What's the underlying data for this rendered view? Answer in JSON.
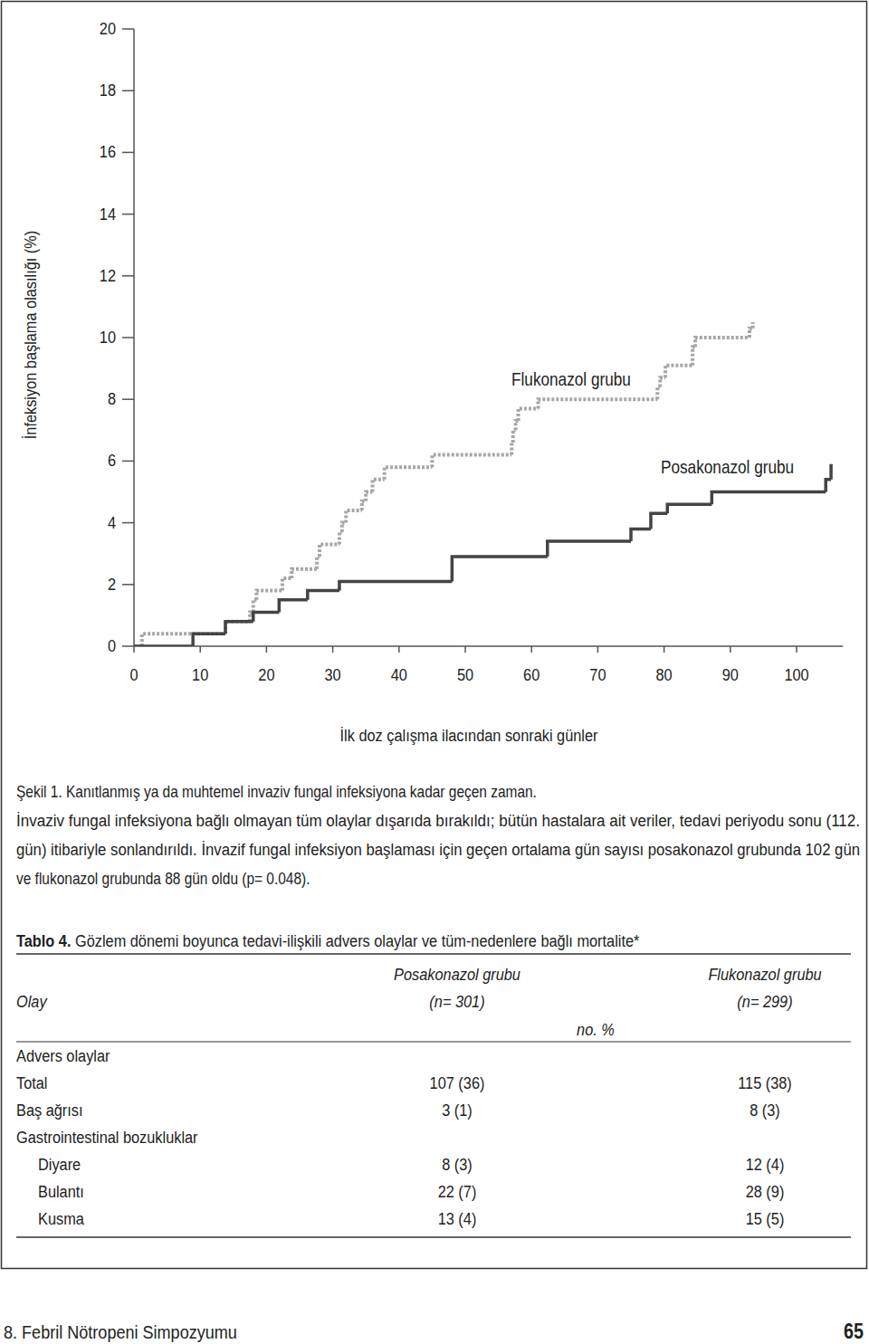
{
  "chart_data": {
    "type": "step",
    "x_label": "İlk doz çalışma ilacından sonraki günler",
    "y_label": "İnfeksiyon başlama olasılığı (%)",
    "xlim": [
      0,
      107
    ],
    "xticks": [
      0,
      10,
      20,
      30,
      40,
      50,
      60,
      70,
      80,
      90,
      100
    ],
    "ylim": [
      0,
      20
    ],
    "yticks": [
      0,
      2,
      4,
      6,
      8,
      10,
      12,
      14,
      16,
      18,
      20
    ],
    "grid": false,
    "series": [
      {
        "name": "Flukonazol grubu",
        "color": "#a6a6a6",
        "line_style": "dashed",
        "x": [
          0,
          1.2,
          13.8,
          17.5,
          18,
          18.5,
          22.4,
          23.8,
          27.6,
          28,
          31,
          31.4,
          32,
          34.4,
          35,
          36,
          37.8,
          45,
          57,
          57.2,
          57.6,
          58,
          61,
          79,
          79.4,
          80.2,
          84.3,
          84.7,
          92.9,
          93.4
        ],
        "values": [
          0,
          0.4,
          0.8,
          1.1,
          1.5,
          1.8,
          2.2,
          2.5,
          2.9,
          3.3,
          3.7,
          4.0,
          4.4,
          4.7,
          5.0,
          5.4,
          5.8,
          6.2,
          6.6,
          7.0,
          7.3,
          7.7,
          8.0,
          8.4,
          8.7,
          9.1,
          9.7,
          10.0,
          10.3,
          10.5
        ]
      },
      {
        "name": "Posakonazol grubu",
        "color": "#444444",
        "line_style": "solid",
        "x": [
          0,
          8.9,
          13.8,
          18,
          21.9,
          26.2,
          31,
          48,
          62.4,
          75,
          78,
          80.5,
          87.2,
          104.4,
          105.2
        ],
        "values": [
          0,
          0.4,
          0.8,
          1.1,
          1.5,
          1.8,
          2.1,
          2.9,
          3.4,
          3.8,
          4.3,
          4.6,
          5.0,
          5.4,
          5.9
        ]
      }
    ]
  },
  "figure_caption": [
    "Şekil 1. Kanıtlanmış ya da muhtemel invaziv fungal infeksiyona kadar geçen zaman.",
    "İnvaziv fungal infeksiyona bağlı olmayan tüm olaylar dışarıda bırakıldı; bütün hastalara ait veriler, tedavi periyodu sonu (112.",
    "gün) itibariyle sonlandırıldı. İnvazif fungal infeksiyon başlaması için geçen ortalama gün sayısı posakonazol grubunda 102 gün",
    "ve flukonazol grubunda 88 gün oldu (p= 0.048)."
  ],
  "table": {
    "label": "Tablo 4.",
    "title": "Gözlem dönemi boyunca tedavi-ilişkili advers olaylar ve tüm-nedenlere bağlı mortalite*",
    "row_header": "Olay",
    "columns": [
      {
        "name": "Posakonazol grubu",
        "n": "(n= 301)"
      },
      {
        "name": "Flukonazol grubu",
        "n": "(n= 299)"
      }
    ],
    "unit": "no. %",
    "rows": [
      {
        "label": "Advers olaylar"
      },
      {
        "label": "Total",
        "cells": [
          "107 (36)",
          "115 (38)"
        ]
      },
      {
        "label": "Baş ağrısı",
        "cells": [
          "3 (1)",
          "8 (3)"
        ]
      },
      {
        "label": "Gastrointestinal bozukluklar",
        "subrows": [
          {
            "label": "Diyare",
            "cells": [
              "8 (3)",
              "12 (4)"
            ]
          },
          {
            "label": "Bulantı",
            "cells": [
              "22 (7)",
              "28 (9)"
            ]
          },
          {
            "label": "Kusma",
            "cells": [
              "13 (4)",
              "15 (5)"
            ]
          }
        ]
      }
    ]
  },
  "footer": {
    "text": "8. Febril Nötropeni Simpozyumu",
    "page": "65"
  }
}
